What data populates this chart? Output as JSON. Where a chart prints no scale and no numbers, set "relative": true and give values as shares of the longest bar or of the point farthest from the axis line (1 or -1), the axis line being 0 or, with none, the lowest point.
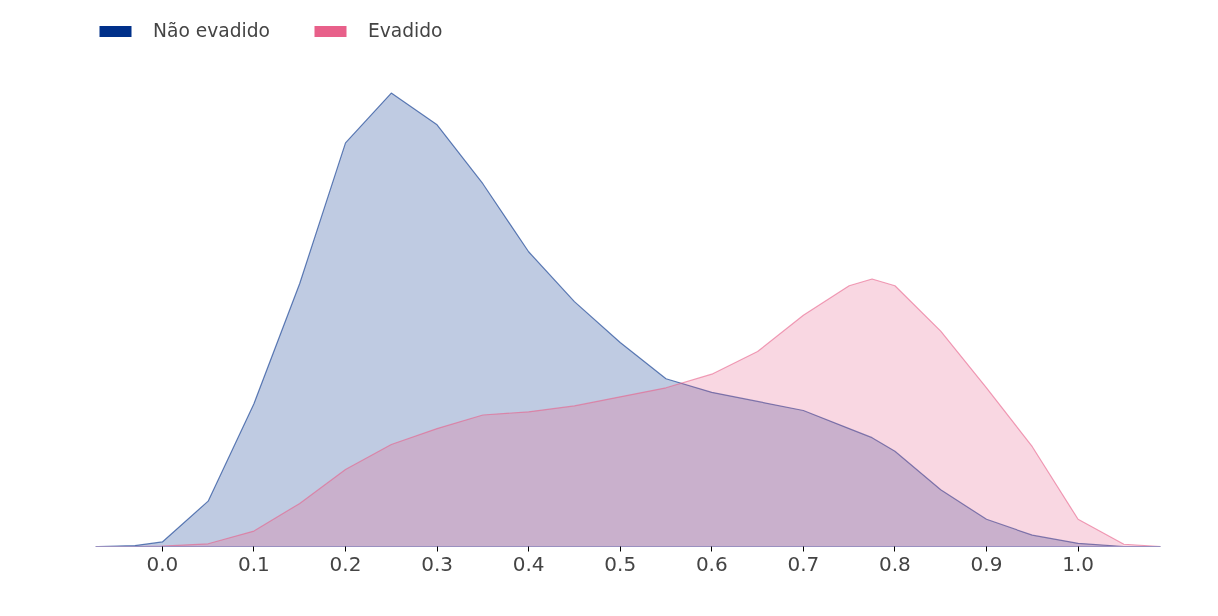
{
  "chart_data": {
    "type": "area",
    "relative": true,
    "legend": "top left",
    "grid": false,
    "x": [
      -0.07,
      -0.03,
      0.0,
      0.05,
      0.1,
      0.15,
      0.2,
      0.25,
      0.3,
      0.35,
      0.4,
      0.45,
      0.5,
      0.55,
      0.6,
      0.65,
      0.7,
      0.75,
      0.775,
      0.8,
      0.85,
      0.9,
      0.95,
      1.0,
      1.05,
      1.09
    ],
    "xlim": [
      -0.073,
      1.09
    ],
    "xticks": [
      {
        "value": 0.0,
        "label": "0.0"
      },
      0.1,
      0.2,
      0.3,
      0.4,
      0.5,
      0.6,
      0.7,
      0.8,
      0.9,
      {
        "value": 1.0,
        "label": "1.0"
      }
    ],
    "series": [
      {
        "name": "Não evadido",
        "color": "#00308a",
        "values": [
          0,
          0.002,
          0.01,
          0.1,
          0.315,
          0.58,
          0.89,
          1.0,
          0.93,
          0.8,
          0.65,
          0.54,
          0.45,
          0.37,
          0.34,
          0.32,
          0.3,
          0.26,
          0.24,
          0.21,
          0.125,
          0.06,
          0.025,
          0.007,
          0,
          0
        ]
      },
      {
        "name": "Evadido",
        "color": "#e8608a",
        "values": [
          0,
          0,
          0.001,
          0.006,
          0.034,
          0.095,
          0.17,
          0.225,
          0.26,
          0.29,
          0.297,
          0.31,
          0.33,
          0.35,
          0.38,
          0.43,
          0.51,
          0.575,
          0.59,
          0.575,
          0.475,
          0.35,
          0.22,
          0.06,
          0.005,
          0
        ]
      }
    ]
  }
}
